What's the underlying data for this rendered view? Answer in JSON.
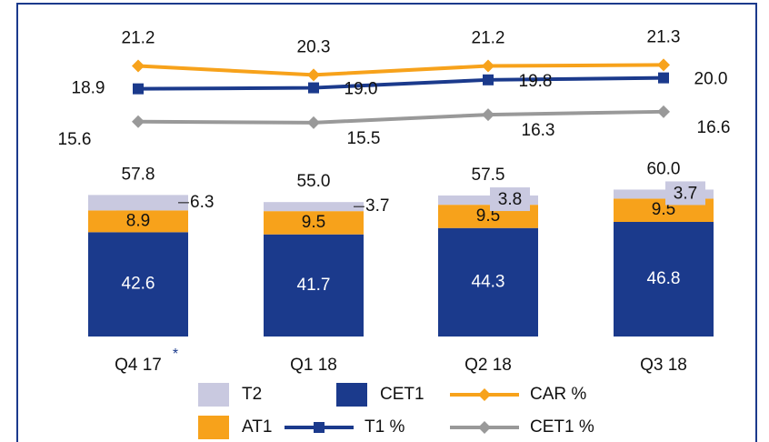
{
  "chart_data": {
    "type": "bar",
    "categories": [
      "Q4 17",
      "Q1 18",
      "Q2 18",
      "Q3 18"
    ],
    "annotation": "*",
    "ylim": [
      0,
      130
    ],
    "y2lim": [
      -6,
      26
    ],
    "series": [
      {
        "name": "CET1",
        "type": "bar",
        "color": "#1b3a8c",
        "values": [
          42.6,
          41.7,
          44.3,
          46.8
        ]
      },
      {
        "name": "AT1",
        "type": "bar",
        "color": "#f7a21b",
        "values": [
          8.9,
          9.5,
          9.5,
          9.5
        ]
      },
      {
        "name": "T2",
        "type": "bar",
        "color": "#c9c9e0",
        "values": [
          6.3,
          3.7,
          3.8,
          3.7
        ]
      },
      {
        "name": "CAR %",
        "type": "line",
        "axis": "y2",
        "marker": "diamond",
        "color": "#f7a21b",
        "values": [
          21.2,
          20.3,
          21.2,
          21.3
        ]
      },
      {
        "name": "T1 %",
        "type": "line",
        "axis": "y2",
        "marker": "square",
        "color": "#1b3a8c",
        "values": [
          18.9,
          19.0,
          19.8,
          20.0
        ],
        "value_labels": [
          "18.9",
          "19.0",
          "19.8",
          "20.0"
        ]
      },
      {
        "name": "CET1 %",
        "type": "line",
        "axis": "y2",
        "marker": "diamond",
        "color": "#999999",
        "values": [
          15.6,
          15.5,
          16.3,
          16.6
        ]
      }
    ],
    "totals": {
      "values": [
        57.8,
        55.0,
        57.5,
        60.0
      ],
      "value_labels": [
        "57.8",
        "55.0",
        "57.5",
        "60.0"
      ]
    }
  }
}
